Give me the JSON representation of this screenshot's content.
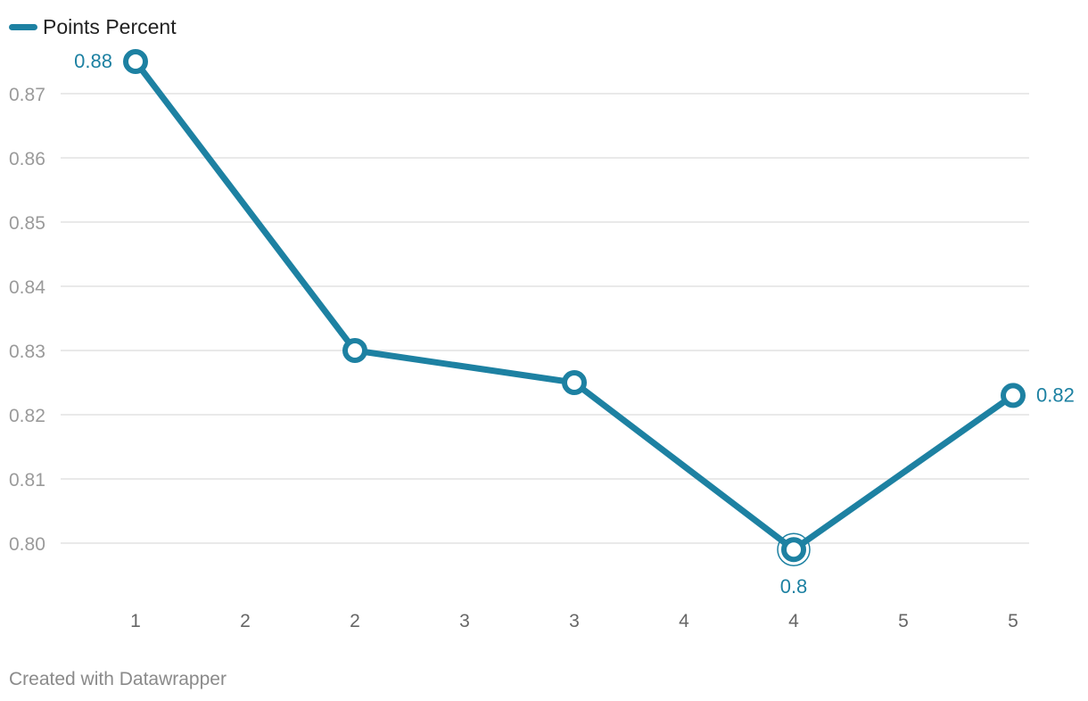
{
  "chart_data": {
    "type": "line",
    "legend": {
      "label": "Points Percent",
      "placement": "top-left"
    },
    "x_tick_labels": [
      "1",
      "2",
      "2",
      "3",
      "3",
      "4",
      "4",
      "5",
      "5"
    ],
    "x_positions": [
      0,
      2,
      4,
      6,
      8
    ],
    "x_range": [
      0,
      8
    ],
    "series": [
      {
        "name": "Points Percent",
        "color": "#1d81a2",
        "values": [
          0.875,
          0.83,
          0.825,
          0.799,
          0.823
        ]
      }
    ],
    "y_ticks": [
      0.8,
      0.81,
      0.82,
      0.83,
      0.84,
      0.85,
      0.86,
      0.87
    ],
    "y_tick_labels": [
      "0.80",
      "0.81",
      "0.82",
      "0.83",
      "0.84",
      "0.85",
      "0.86",
      "0.87"
    ],
    "ylim": [
      0.79,
      0.875
    ],
    "grid": true,
    "annotations": [
      {
        "point_index": 0,
        "text": "0.88",
        "placement": "left"
      },
      {
        "point_index": 3,
        "text": "0.8",
        "placement": "below"
      },
      {
        "point_index": 4,
        "text": "0.82",
        "placement": "right"
      }
    ],
    "highlighted_point_index": 3
  },
  "colors": {
    "series": "#1d81a2",
    "grid": "#e2e2e2",
    "y_tick_text": "#9a9a9a",
    "x_tick_text": "#666666"
  },
  "footer": {
    "credit": "Created with Datawrapper"
  }
}
